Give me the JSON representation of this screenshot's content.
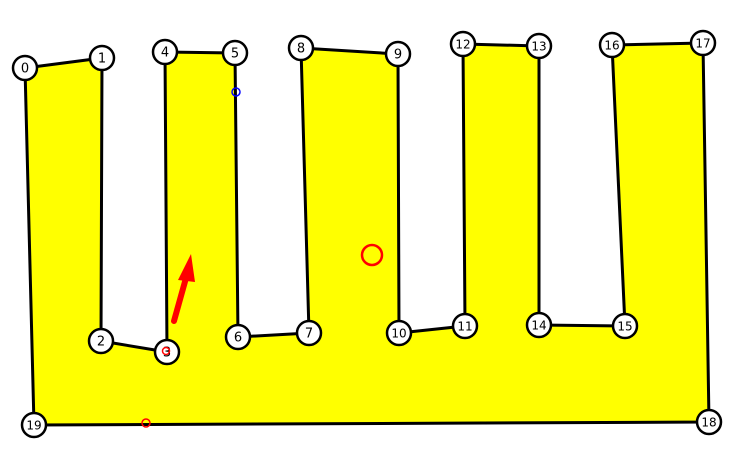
{
  "colors": {
    "polygon_fill": "#ffff00",
    "edge_stroke": "#000000",
    "node_fill": "#ffffff",
    "marker_red": "#ff0000",
    "marker_blue": "#0000ff"
  },
  "vertices": [
    {
      "label": "0"
    },
    {
      "label": "1"
    },
    {
      "label": "2"
    },
    {
      "label": "3"
    },
    {
      "label": "4"
    },
    {
      "label": "5"
    },
    {
      "label": "6"
    },
    {
      "label": "7"
    },
    {
      "label": "8"
    },
    {
      "label": "9"
    },
    {
      "label": "10"
    },
    {
      "label": "11"
    },
    {
      "label": "12"
    },
    {
      "label": "13"
    },
    {
      "label": "14"
    },
    {
      "label": "15"
    },
    {
      "label": "16"
    },
    {
      "label": "17"
    },
    {
      "label": "18"
    },
    {
      "label": "19"
    }
  ],
  "markers": {
    "arrow": "red-arrow",
    "large_circle": "red-circle-large",
    "small_circles": [
      "red-circle-small",
      "red-circle-small",
      "blue-circle-small"
    ]
  }
}
